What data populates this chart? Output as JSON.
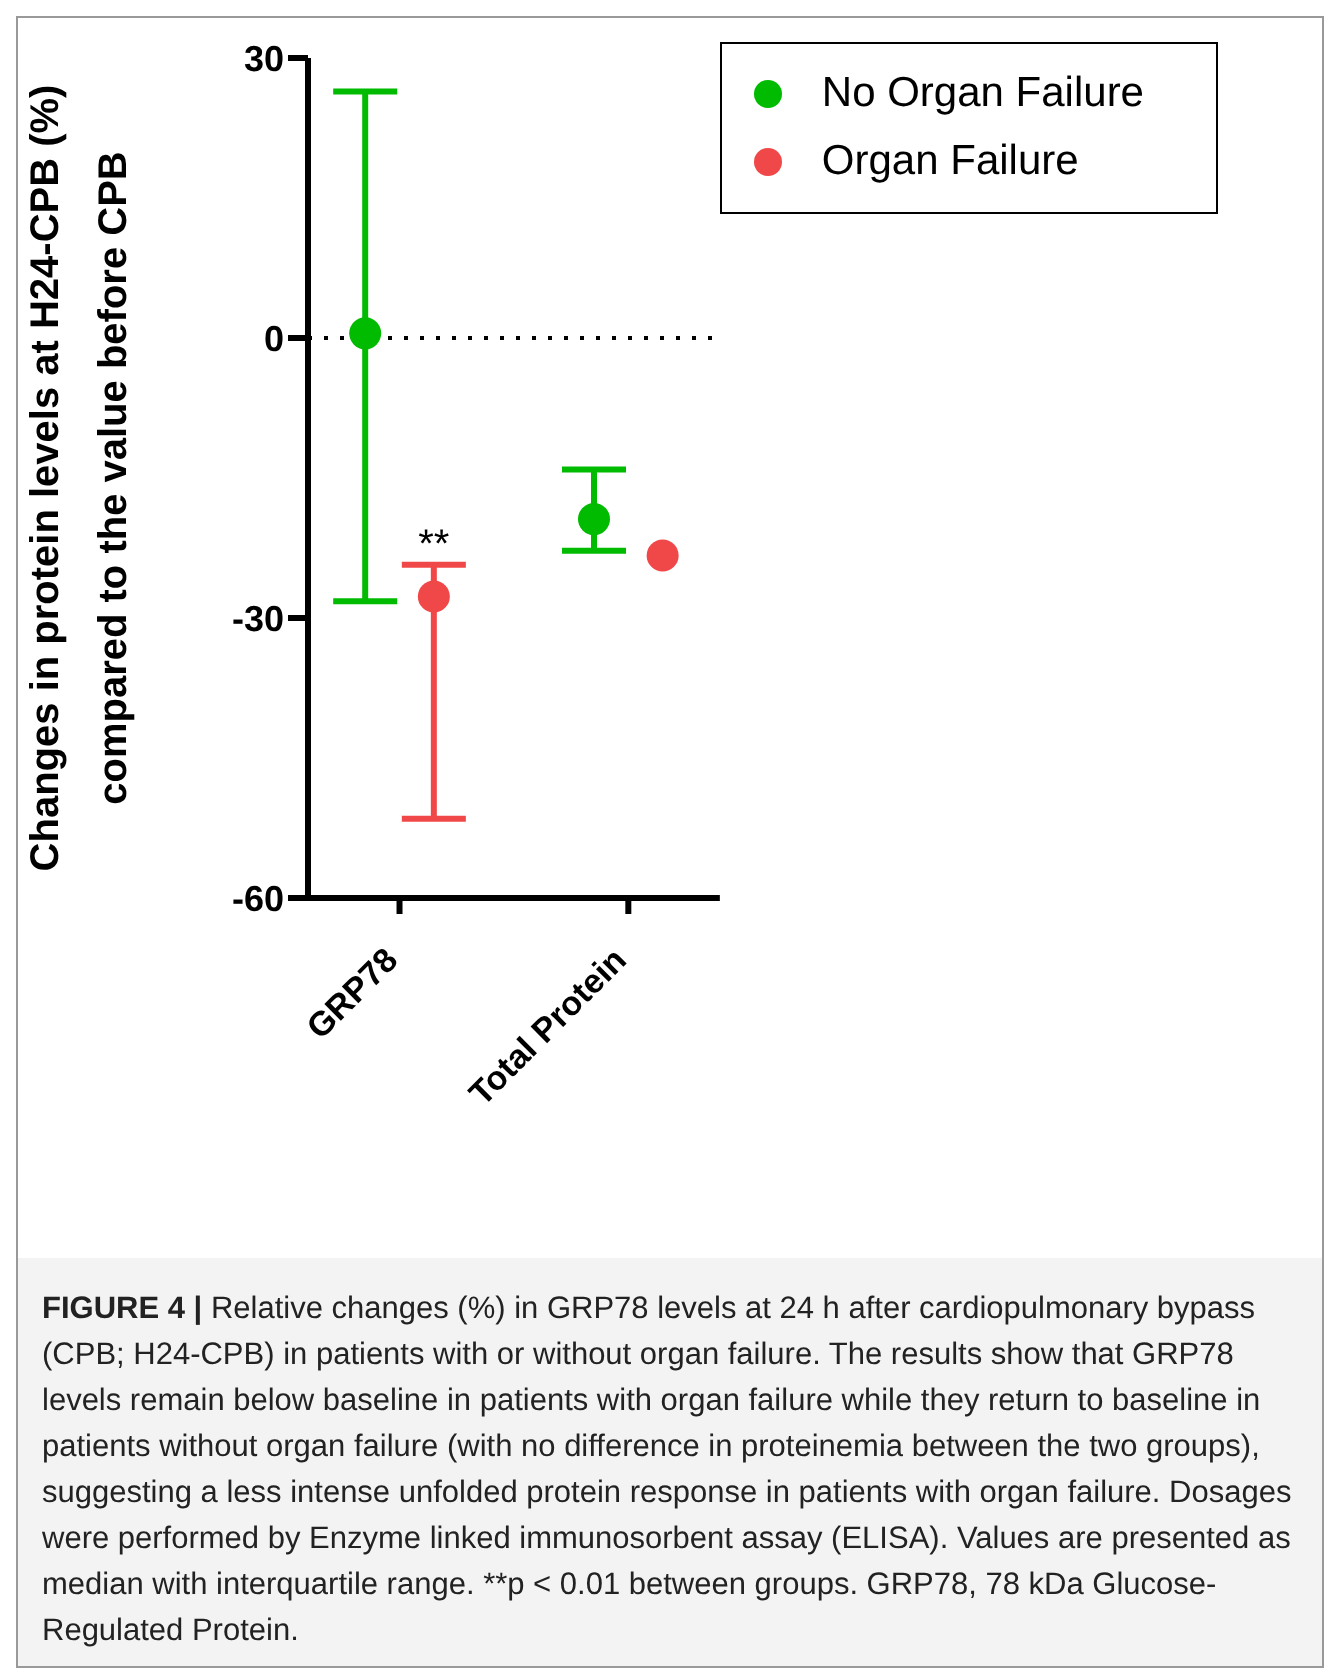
{
  "chart_data": {
    "type": "scatter",
    "ylabel": "Changes in protein levels at H24-CPB (%)\ncompared to the value before CPB",
    "categories": [
      "GRP78",
      "Total Protein"
    ],
    "series": [
      {
        "name": "No Organ Failure",
        "color": "#00bb00",
        "values": [
          0.5,
          -19.4
        ],
        "errors": [
          [
            -28.2,
            26.4
          ],
          [
            -22.8,
            -14.1
          ]
        ]
      },
      {
        "name": "Organ Failure",
        "color": "#f04848",
        "values": [
          -27.7,
          -23.3
        ],
        "errors": [
          [
            -51.5,
            -24.3
          ],
          null
        ]
      }
    ],
    "ylim": [
      -60,
      30
    ],
    "yticks": [
      -60,
      -30,
      0,
      30
    ],
    "grid": false,
    "legend": "top right",
    "marker": "circle",
    "ref_lines": [
      {
        "axis": "y",
        "value": 0,
        "color": "#000000",
        "line_style": "dotted"
      }
    ],
    "annotations": [
      {
        "text": "**",
        "x": "GRP78",
        "y": -24.3
      },
      "FIGURE 4 | Relative changes (%) in GRP78 levels at 24 h after cardiopulmonary bypass (CPB; H24-CPB) in patients with or without organ failure. The results show that GRP78 levels remain below baseline in patients with organ failure while they return to baseline in patients without organ failure (with no difference in proteinemia between the two groups), suggesting a less intense unfolded protein response in patients with organ failure. Dosages were performed by Enzyme linked immunosorbent assay (ELISA). Values are presented as median with interquartile range. **p < 0.01 between groups. GRP78, 78 kDa Glucose-Regulated Protein."
    ]
  }
}
